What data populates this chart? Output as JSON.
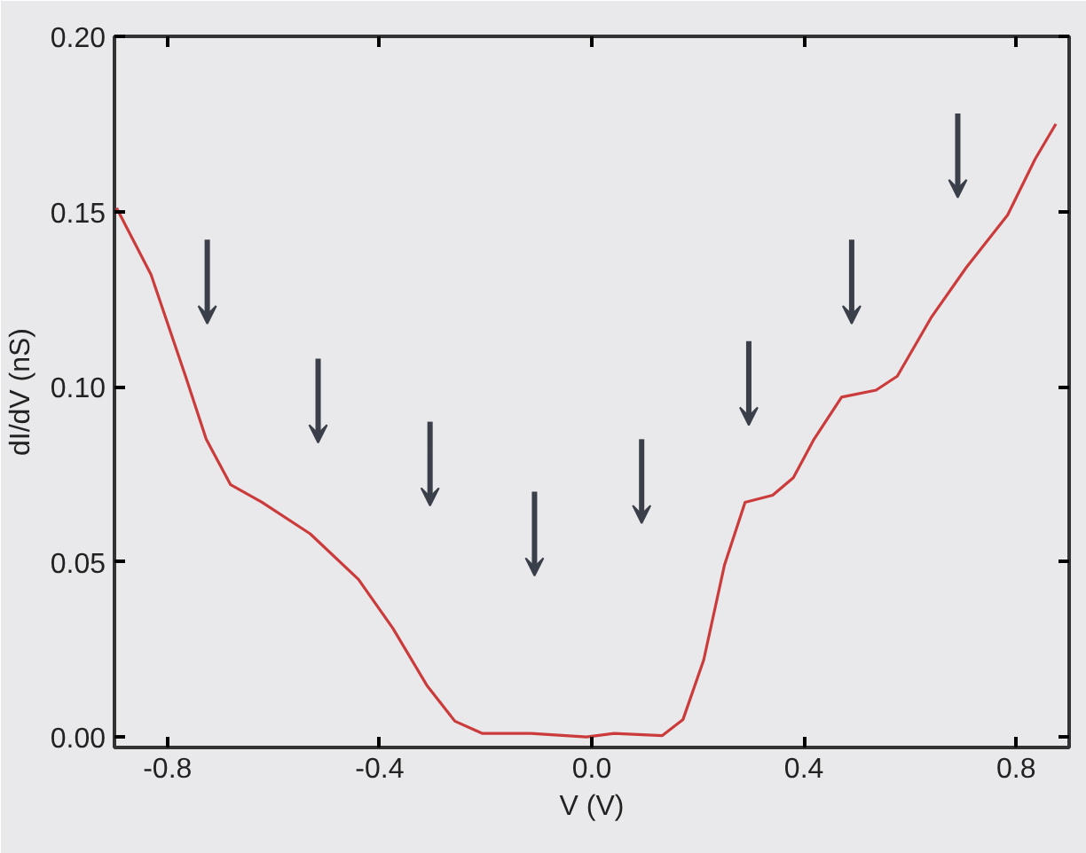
{
  "chart_data": {
    "type": "line",
    "xlabel": "V (V)",
    "ylabel": "dI/dV (nS)",
    "x": [
      -0.896,
      -0.831,
      -0.766,
      -0.727,
      -0.681,
      -0.622,
      -0.531,
      -0.44,
      -0.375,
      -0.31,
      -0.258,
      -0.206,
      -0.115,
      -0.01,
      0.042,
      0.133,
      0.172,
      0.211,
      0.25,
      0.289,
      0.341,
      0.38,
      0.419,
      0.471,
      0.536,
      0.576,
      0.641,
      0.706,
      0.784,
      0.836,
      0.875
    ],
    "series": [
      {
        "color": "#cc3b3b",
        "values": [
          0.151,
          0.132,
          0.103,
          0.085,
          0.072,
          0.067,
          0.058,
          0.045,
          0.031,
          0.0145,
          0.0045,
          0.001,
          0.001,
          0.0,
          0.001,
          0.0004,
          0.005,
          0.022,
          0.049,
          0.067,
          0.069,
          0.074,
          0.085,
          0.097,
          0.099,
          0.103,
          0.12,
          0.134,
          0.149,
          0.165,
          0.175
        ]
      }
    ],
    "xlim": [
      -0.9,
      0.9
    ],
    "ylim": [
      -0.003,
      0.2
    ],
    "xticks": [
      {
        "value": -0.8,
        "label": "-0.8"
      },
      {
        "value": -0.4,
        "label": "-0.4"
      },
      {
        "value": 0,
        "label": "0.0"
      },
      {
        "value": 0.4,
        "label": "0.4"
      },
      {
        "value": 0.8,
        "label": "0.8"
      }
    ],
    "yticks": [
      {
        "value": 0,
        "label": "0.00"
      },
      {
        "value": 0.05,
        "label": "0.05"
      },
      {
        "value": 0.1,
        "label": "0.10"
      },
      {
        "value": 0.15,
        "label": "0.15"
      },
      {
        "value": 0.2,
        "label": "0.20"
      }
    ],
    "grid": false,
    "marker": "none",
    "line_style": "solid"
  }
}
